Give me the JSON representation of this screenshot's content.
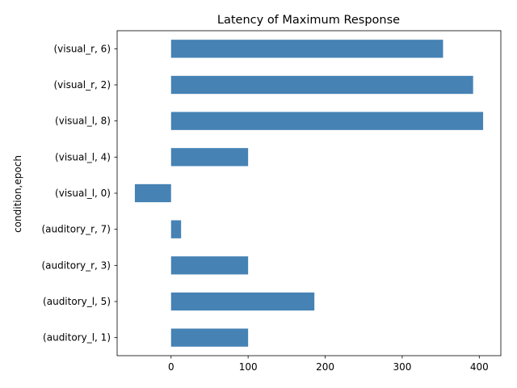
{
  "chart_data": {
    "type": "bar",
    "orientation": "horizontal",
    "title": "Latency of Maximum Response",
    "xlabel": "",
    "ylabel": "condition,epoch",
    "categories": [
      "(auditory_l, 1)",
      "(auditory_l, 5)",
      "(auditory_r, 3)",
      "(auditory_r, 7)",
      "(visual_l, 0)",
      "(visual_l, 4)",
      "(visual_l, 8)",
      "(visual_r, 2)",
      "(visual_r, 6)"
    ],
    "values": [
      100,
      186,
      100,
      13,
      -47,
      100,
      405,
      392,
      353
    ],
    "xlim": [
      -70,
      428
    ],
    "xticks": [
      0,
      100,
      200,
      300,
      400
    ],
    "grid": false,
    "legend": "none",
    "bar_color": "#4682b4"
  }
}
